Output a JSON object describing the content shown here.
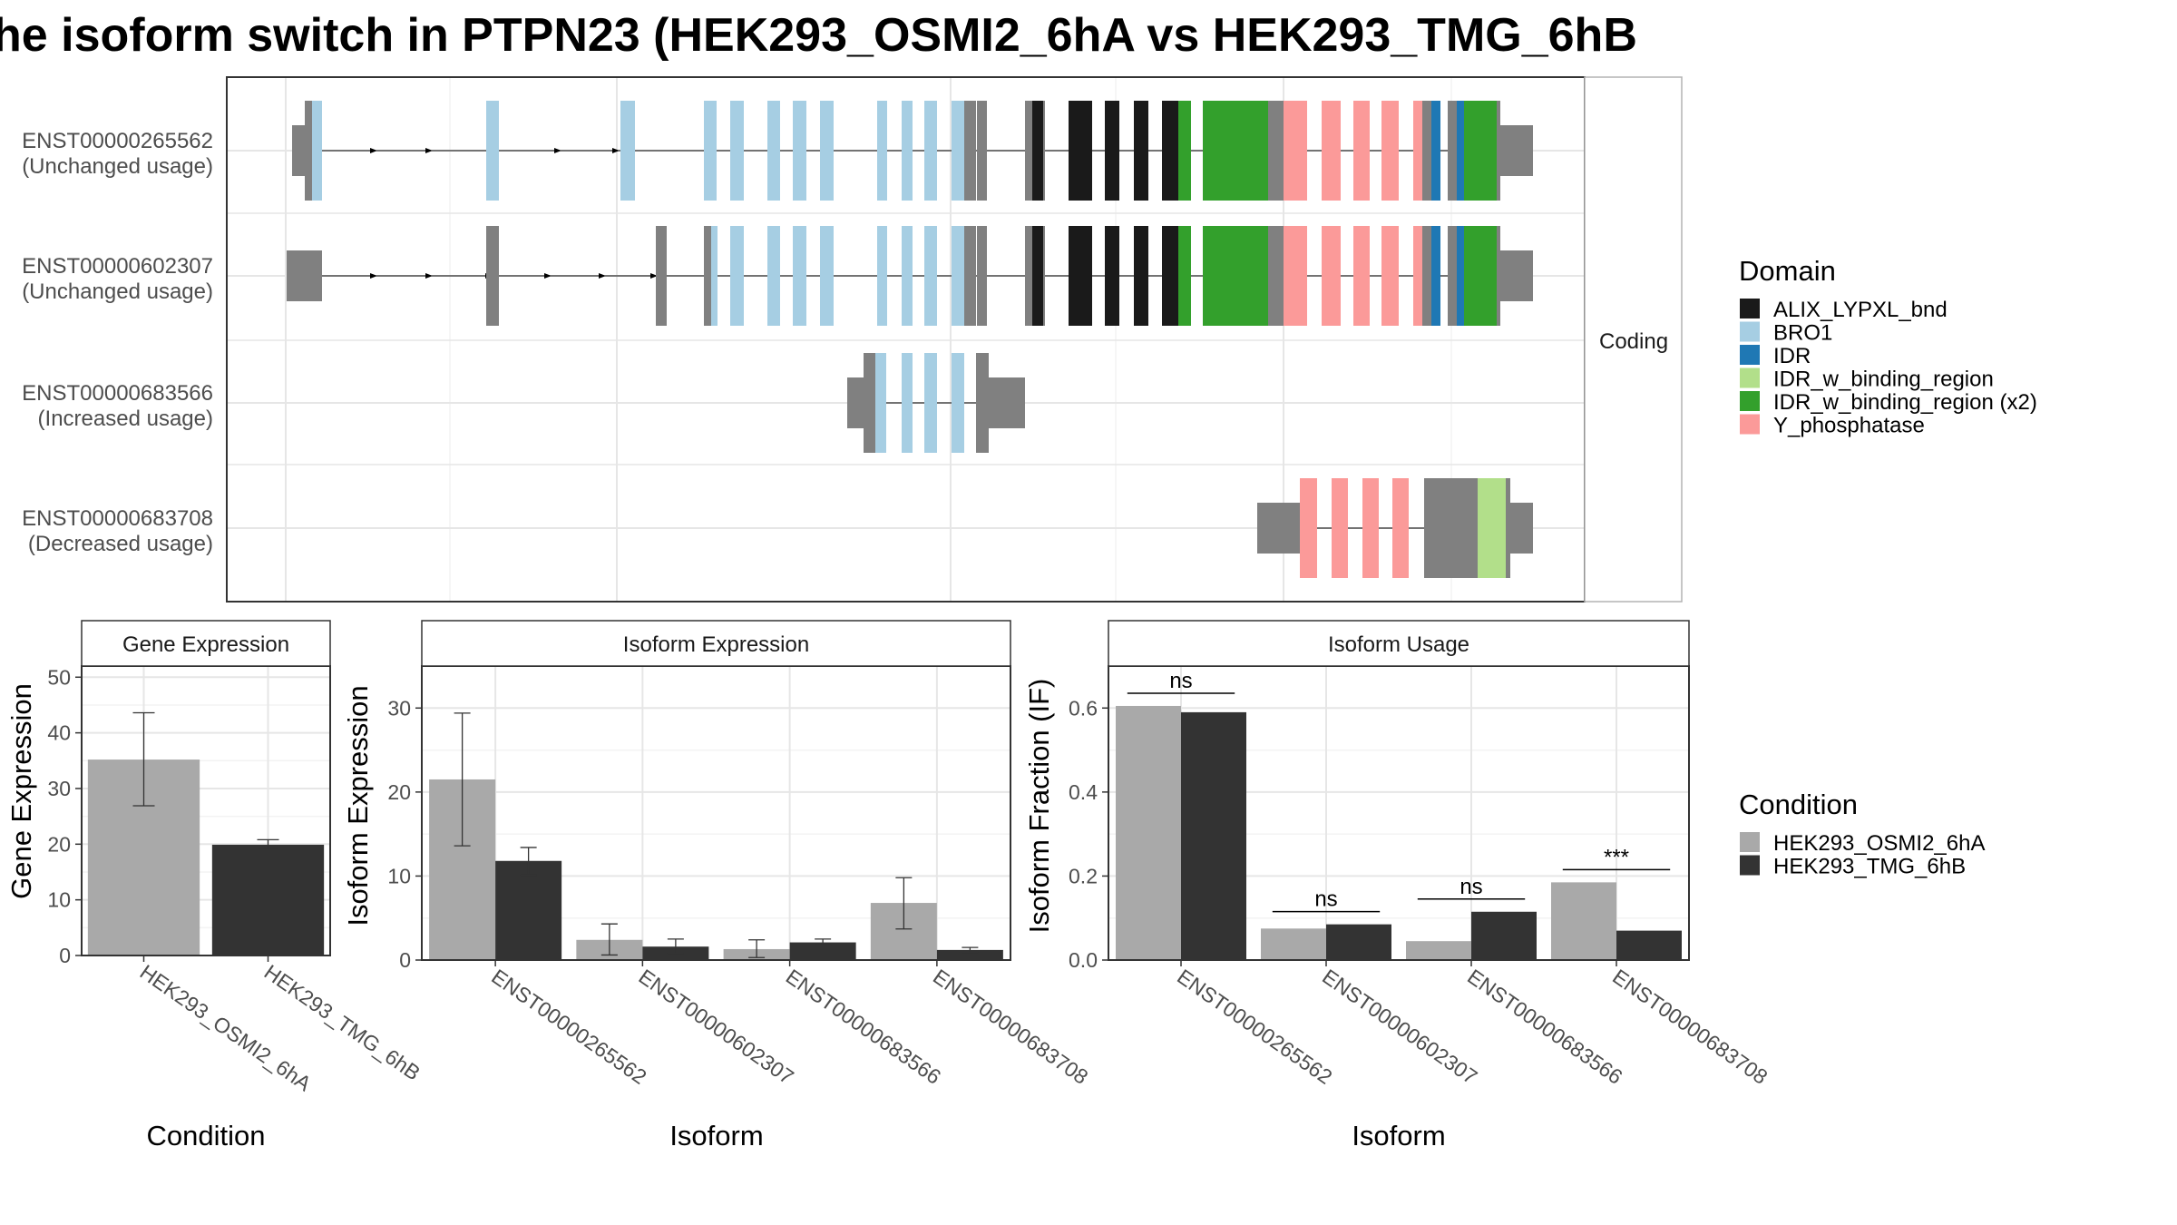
{
  "title": "he isoform switch in PTPN23 (HEK293_OSMI2_6hA vs HEK293_TMG_6hB",
  "colors": {
    "ALIX_LYPXL_bnd": "#1a1a1a",
    "BRO1": "#a6cee3",
    "IDR": "#1f78b4",
    "IDR_w_binding_region": "#b2df8a",
    "IDR_w_binding_region_x2": "#33a02c",
    "Y_phosphatase": "#fb9a99",
    "noncoding": "#808080",
    "cond1": "#a9a9a9",
    "cond2": "#333333"
  },
  "structure_panel": {
    "facet_label": "Coding",
    "isoforms": [
      {
        "id": "ENST00000265562",
        "usage": "(Unchanged usage)"
      },
      {
        "id": "ENST00000602307",
        "usage": "(Unchanged usage)"
      },
      {
        "id": "ENST00000683566",
        "usage": "(Increased usage)"
      },
      {
        "id": "ENST00000683708",
        "usage": "(Decreased usage)"
      }
    ]
  },
  "domain_legend": {
    "title": "Domain",
    "items": [
      {
        "label": "ALIX_LYPXL_bnd",
        "color": "#1a1a1a"
      },
      {
        "label": "BRO1",
        "color": "#a6cee3"
      },
      {
        "label": "IDR",
        "color": "#1f78b4"
      },
      {
        "label": "IDR_w_binding_region",
        "color": "#b2df8a"
      },
      {
        "label": "IDR_w_binding_region (x2)",
        "color": "#33a02c"
      },
      {
        "label": "Y_phosphatase",
        "color": "#fb9a99"
      }
    ]
  },
  "condition_legend": {
    "title": "Condition",
    "items": [
      {
        "label": "HEK293_OSMI2_6hA",
        "color": "#a9a9a9"
      },
      {
        "label": "HEK293_TMG_6hB",
        "color": "#333333"
      }
    ]
  },
  "chart_data": [
    {
      "type": "bar",
      "title": "Gene Expression",
      "xlabel": "Condition",
      "ylabel": "Gene Expression",
      "ylim": [
        0,
        52
      ],
      "yticks": [
        0,
        10,
        20,
        30,
        40,
        50
      ],
      "categories": [
        "HEK293_OSMI2_6hA",
        "HEK293_TMG_6hB"
      ],
      "values": [
        35.2,
        19.9
      ],
      "errors": [
        [
          26.9,
          43.6
        ],
        [
          19.1,
          20.8
        ]
      ]
    },
    {
      "type": "bar",
      "title": "Isoform Expression",
      "xlabel": "Isoform",
      "ylabel": "Isoform Expression",
      "ylim": [
        0,
        35
      ],
      "yticks": [
        0,
        10,
        20,
        30
      ],
      "categories": [
        "ENST00000265562",
        "ENST00000602307",
        "ENST00000683566",
        "ENST00000683708"
      ],
      "series": [
        {
          "name": "HEK293_OSMI2_6hA",
          "values": [
            21.5,
            2.4,
            1.3,
            6.8
          ],
          "errors": [
            [
              13.6,
              29.4
            ],
            [
              0.6,
              4.3
            ],
            [
              0.3,
              2.4
            ],
            [
              3.7,
              9.8
            ]
          ]
        },
        {
          "name": "HEK293_TMG_6hB",
          "values": [
            11.8,
            1.6,
            2.1,
            1.2
          ],
          "errors": [
            [
              10.1,
              13.4
            ],
            [
              0.8,
              2.5
            ],
            [
              1.8,
              2.5
            ],
            [
              0.9,
              1.5
            ]
          ]
        }
      ]
    },
    {
      "type": "bar",
      "title": "Isoform Usage",
      "xlabel": "Isoform",
      "ylabel": "Isoform Fraction (IF)",
      "ylim": [
        0,
        0.7
      ],
      "yticks": [
        "0.0",
        "0.2",
        "0.4",
        "0.6"
      ],
      "categories": [
        "ENST00000265562",
        "ENST00000602307",
        "ENST00000683566",
        "ENST00000683708"
      ],
      "series": [
        {
          "name": "HEK293_OSMI2_6hA",
          "values": [
            0.605,
            0.075,
            0.045,
            0.185
          ]
        },
        {
          "name": "HEK293_TMG_6hB",
          "values": [
            0.59,
            0.085,
            0.115,
            0.07
          ]
        }
      ],
      "significance": [
        "ns",
        "ns",
        "ns",
        "***"
      ]
    }
  ]
}
